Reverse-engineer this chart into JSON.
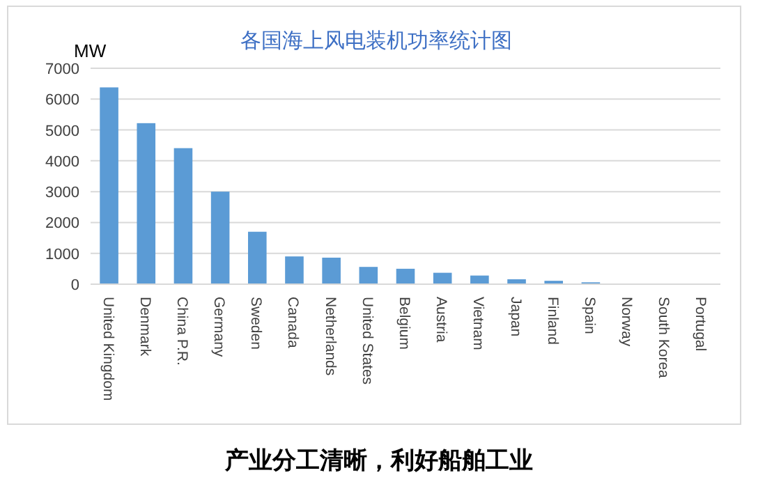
{
  "chart_data": {
    "type": "bar",
    "title": "各国海上风电装机功率统计图",
    "ylabel": "MW",
    "categories": [
      "United Kingdom",
      "Denmark",
      "China P.R.",
      "Germany",
      "Sweden",
      "Canada",
      "Netherlands",
      "United States",
      "Belgium",
      "Austria",
      "Vietnam",
      "Japan",
      "Finland",
      "Spain",
      "Norway",
      "South Korea",
      "Portugal"
    ],
    "values": [
      6380,
      5220,
      4410,
      3000,
      1700,
      900,
      860,
      560,
      500,
      370,
      280,
      160,
      110,
      60,
      null,
      null,
      null
    ],
    "color": "#5b9bd5",
    "ylim": [
      0,
      7000
    ],
    "yticks": [
      0,
      1000,
      2000,
      3000,
      4000,
      5000,
      6000,
      7000
    ],
    "grid": "y",
    "annotations": [
      "产业分工清晰，利好船舶工业"
    ]
  }
}
